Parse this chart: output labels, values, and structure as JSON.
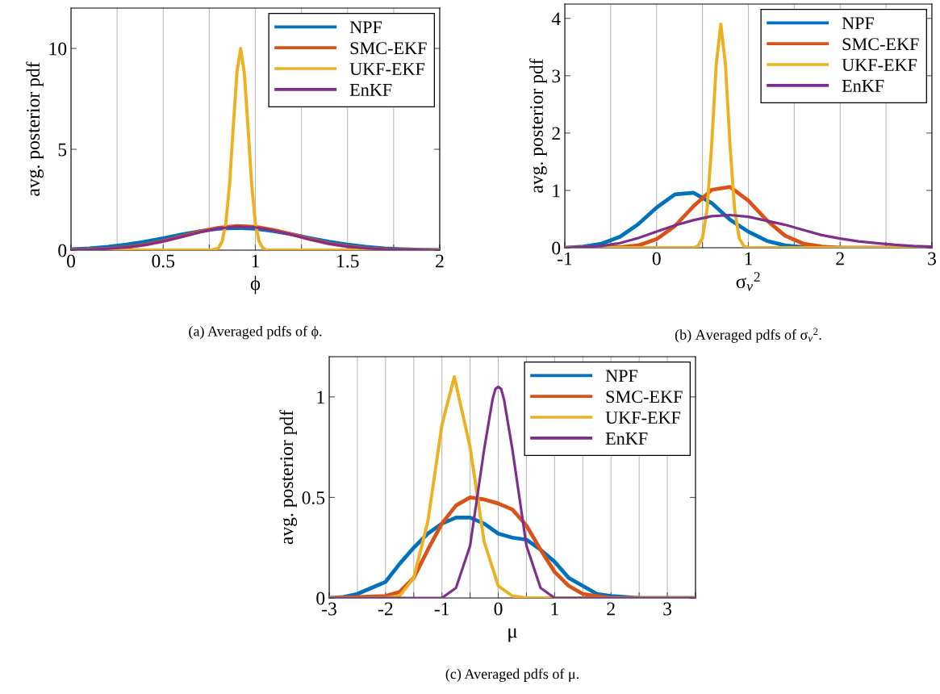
{
  "chart_data": [
    {
      "type": "line",
      "xlabel": "ϕ",
      "ylabel": "avg. posterior pdf",
      "annotations": [
        "(a) Averaged pdfs of ϕ."
      ],
      "xlim": [
        0,
        2
      ],
      "ylim": [
        0,
        12
      ],
      "xticks": [
        0,
        {
          "value": 0.25,
          "label": null
        },
        0.5,
        {
          "value": 0.75,
          "label": null
        },
        1,
        {
          "value": 1.25,
          "label": null
        },
        1.5,
        {
          "value": 1.75,
          "label": null
        },
        2
      ],
      "yticks": [
        0,
        5,
        10
      ],
      "grid": "x",
      "legend": "top right",
      "series": [
        {
          "name": "NPF",
          "color": "#0072bd",
          "x": [
            0,
            0.1,
            0.2,
            0.3,
            0.4,
            0.5,
            0.6,
            0.7,
            0.8,
            0.9,
            1.0,
            1.1,
            1.2,
            1.3,
            1.4,
            1.5,
            1.6,
            1.7,
            1.8,
            1.9,
            2.0
          ],
          "values": [
            0.05,
            0.09,
            0.17,
            0.28,
            0.42,
            0.59,
            0.78,
            0.94,
            1.06,
            1.1,
            1.06,
            0.94,
            0.78,
            0.59,
            0.42,
            0.28,
            0.17,
            0.09,
            0.05,
            0.02,
            0.01
          ]
        },
        {
          "name": "SMC-EKF",
          "color": "#d95319",
          "x": [
            0,
            0.1,
            0.2,
            0.3,
            0.4,
            0.5,
            0.6,
            0.7,
            0.8,
            0.9,
            1.0,
            1.1,
            1.2,
            1.3,
            1.4,
            1.5,
            1.6,
            1.7,
            1.8,
            1.9,
            2.0
          ],
          "values": [
            0.01,
            0.03,
            0.07,
            0.14,
            0.27,
            0.45,
            0.68,
            0.92,
            1.11,
            1.2,
            1.16,
            1.0,
            0.78,
            0.54,
            0.33,
            0.19,
            0.09,
            0.04,
            0.02,
            0.01,
            0.0
          ]
        },
        {
          "name": "UKF-EKF",
          "color": "#edb120",
          "x": [
            0,
            0.7,
            0.76,
            0.8,
            0.82,
            0.84,
            0.86,
            0.88,
            0.9,
            0.92,
            0.94,
            0.96,
            0.98,
            1.0,
            1.02,
            1.04,
            1.06,
            1.2,
            2.0
          ],
          "values": [
            0,
            0,
            0,
            0.11,
            0.44,
            1.35,
            3.25,
            6.1,
            8.8,
            10,
            8.8,
            6.1,
            3.25,
            1.35,
            0.44,
            0.11,
            0,
            0,
            0
          ]
        },
        {
          "name": "EnKF",
          "color": "#7e2f8e",
          "x": [
            0,
            0.1,
            0.2,
            0.3,
            0.4,
            0.5,
            0.6,
            0.7,
            0.8,
            0.9,
            1.0,
            1.1,
            1.2,
            1.3,
            1.4,
            1.5,
            1.6,
            1.7,
            1.8,
            1.9,
            2.0
          ],
          "values": [
            0.01,
            0.03,
            0.07,
            0.14,
            0.26,
            0.44,
            0.66,
            0.89,
            1.08,
            1.17,
            1.13,
            0.97,
            0.76,
            0.52,
            0.32,
            0.18,
            0.09,
            0.04,
            0.02,
            0.01,
            0.0
          ]
        }
      ]
    },
    {
      "type": "line",
      "xlabel": "σ$_{v}$$^{2}$",
      "ylabel": "avg. posterior pdf",
      "annotations": [
        "(b) Averaged pdfs of σ$_{v}$$^{2}$."
      ],
      "xlim": [
        -1,
        3
      ],
      "ylim": [
        0,
        4.25
      ],
      "xticks": [
        {
          "value": -1,
          "label": "-1"
        },
        {
          "value": -0.5,
          "label": null
        },
        0,
        {
          "value": 0.5,
          "label": null
        },
        1,
        {
          "value": 1.5,
          "label": null
        },
        2,
        {
          "value": 2.5,
          "label": null
        },
        3
      ],
      "yticks": [
        0,
        1,
        2,
        3,
        4
      ],
      "grid": "x",
      "legend": "top right",
      "series": [
        {
          "name": "NPF",
          "color": "#0072bd",
          "x": [
            -1,
            -0.8,
            -0.6,
            -0.4,
            -0.2,
            0,
            0.2,
            0.4,
            0.6,
            0.8,
            1.0,
            1.2,
            1.4,
            1.6,
            1.8,
            3.0
          ],
          "values": [
            0.0,
            0.02,
            0.07,
            0.19,
            0.41,
            0.7,
            0.93,
            0.96,
            0.78,
            0.49,
            0.28,
            0.12,
            0.04,
            0.01,
            0.0,
            0.0
          ]
        },
        {
          "name": "SMC-EKF",
          "color": "#d95319",
          "x": [
            -1,
            -0.4,
            -0.2,
            0,
            0.2,
            0.4,
            0.6,
            0.8,
            1.0,
            1.2,
            1.4,
            1.6,
            1.8,
            2.0,
            3.0
          ],
          "values": [
            0.0,
            0.01,
            0.04,
            0.15,
            0.38,
            0.72,
            1.01,
            1.06,
            0.82,
            0.48,
            0.21,
            0.07,
            0.02,
            0.0,
            0.0
          ]
        },
        {
          "name": "UKF-EKF",
          "color": "#edb120",
          "x": [
            -1,
            0.3,
            0.4,
            0.45,
            0.5,
            0.55,
            0.6,
            0.65,
            0.7,
            0.75,
            0.8,
            0.85,
            0.9,
            0.95,
            1.0,
            3.0
          ],
          "values": [
            0,
            0,
            0.0,
            0.03,
            0.17,
            0.67,
            1.79,
            3.2,
            3.9,
            3.2,
            1.79,
            0.67,
            0.17,
            0.03,
            0.0,
            0
          ]
        },
        {
          "name": "EnKF",
          "color": "#7e2f8e",
          "x": [
            -1,
            -0.8,
            -0.6,
            -0.4,
            -0.2,
            0,
            0.2,
            0.4,
            0.6,
            0.8,
            1.0,
            1.2,
            1.4,
            1.6,
            1.8,
            2.0,
            2.2,
            2.4,
            2.6,
            2.8,
            3.0
          ],
          "values": [
            0.0,
            0.01,
            0.03,
            0.08,
            0.17,
            0.28,
            0.39,
            0.48,
            0.55,
            0.57,
            0.54,
            0.47,
            0.4,
            0.31,
            0.22,
            0.16,
            0.11,
            0.08,
            0.05,
            0.03,
            0.02
          ]
        }
      ]
    },
    {
      "type": "line",
      "xlabel": "μ",
      "ylabel": "avg. posterior pdf",
      "annotations": [
        "(c) Averaged pdfs of μ."
      ],
      "xlim": [
        -3,
        3.5
      ],
      "ylim": [
        0,
        1.2
      ],
      "xticks": [
        {
          "value": -3,
          "label": "-3"
        },
        {
          "value": -2.5,
          "label": null
        },
        {
          "value": -2,
          "label": "-2"
        },
        {
          "value": -1.5,
          "label": null
        },
        {
          "value": -1,
          "label": "-1"
        },
        {
          "value": -0.5,
          "label": null
        },
        0,
        {
          "value": 0.5,
          "label": null
        },
        1,
        {
          "value": 1.5,
          "label": null
        },
        2,
        {
          "value": 2.5,
          "label": null
        },
        3,
        {
          "value": 3.5,
          "label": null
        }
      ],
      "yticks": [
        0,
        0.5,
        1
      ],
      "grid": "x",
      "legend": "top right",
      "series": [
        {
          "name": "NPF",
          "color": "#0072bd",
          "x": [
            -3,
            -2.75,
            -2.5,
            -2.25,
            -2,
            -1.75,
            -1.5,
            -1.25,
            -1,
            -0.75,
            -0.5,
            -0.25,
            0,
            0.25,
            0.5,
            0.75,
            1,
            1.25,
            1.5,
            1.75,
            2,
            2.5,
            3.5
          ],
          "values": [
            0,
            0.005,
            0.02,
            0.05,
            0.08,
            0.17,
            0.25,
            0.32,
            0.37,
            0.4,
            0.4,
            0.37,
            0.32,
            0.3,
            0.29,
            0.24,
            0.18,
            0.1,
            0.06,
            0.02,
            0.01,
            0,
            0
          ]
        },
        {
          "name": "SMC-EKF",
          "color": "#d95319",
          "x": [
            -3,
            -2,
            -1.75,
            -1.5,
            -1.25,
            -1,
            -0.75,
            -0.5,
            -0.25,
            0,
            0.25,
            0.5,
            0.75,
            1,
            1.25,
            1.5,
            1.75,
            2,
            3.5
          ],
          "values": [
            0,
            0.01,
            0.03,
            0.1,
            0.24,
            0.37,
            0.46,
            0.5,
            0.49,
            0.47,
            0.44,
            0.36,
            0.24,
            0.13,
            0.06,
            0.02,
            0.01,
            0,
            0
          ]
        },
        {
          "name": "UKF-EKF",
          "color": "#edb120",
          "x": [
            -3,
            -2,
            -1.75,
            -1.5,
            -1.25,
            -1,
            -0.78,
            -0.5,
            -0.25,
            0,
            0.25,
            0.5,
            3.5
          ],
          "values": [
            0,
            0.0,
            0.01,
            0.1,
            0.38,
            0.86,
            1.1,
            0.75,
            0.28,
            0.06,
            0.01,
            0,
            0
          ]
        },
        {
          "name": "EnKF",
          "color": "#7e2f8e",
          "x": [
            -3,
            -1.25,
            -1,
            -0.75,
            -0.5,
            -0.25,
            -0.1,
            -0.05,
            0,
            0.05,
            0.1,
            0.25,
            0.5,
            0.75,
            1,
            1.25,
            3.5
          ],
          "values": [
            0,
            0,
            0.0,
            0.05,
            0.26,
            0.74,
            0.99,
            1.04,
            1.05,
            1.04,
            0.99,
            0.74,
            0.26,
            0.05,
            0.0,
            0,
            0
          ]
        }
      ]
    }
  ]
}
